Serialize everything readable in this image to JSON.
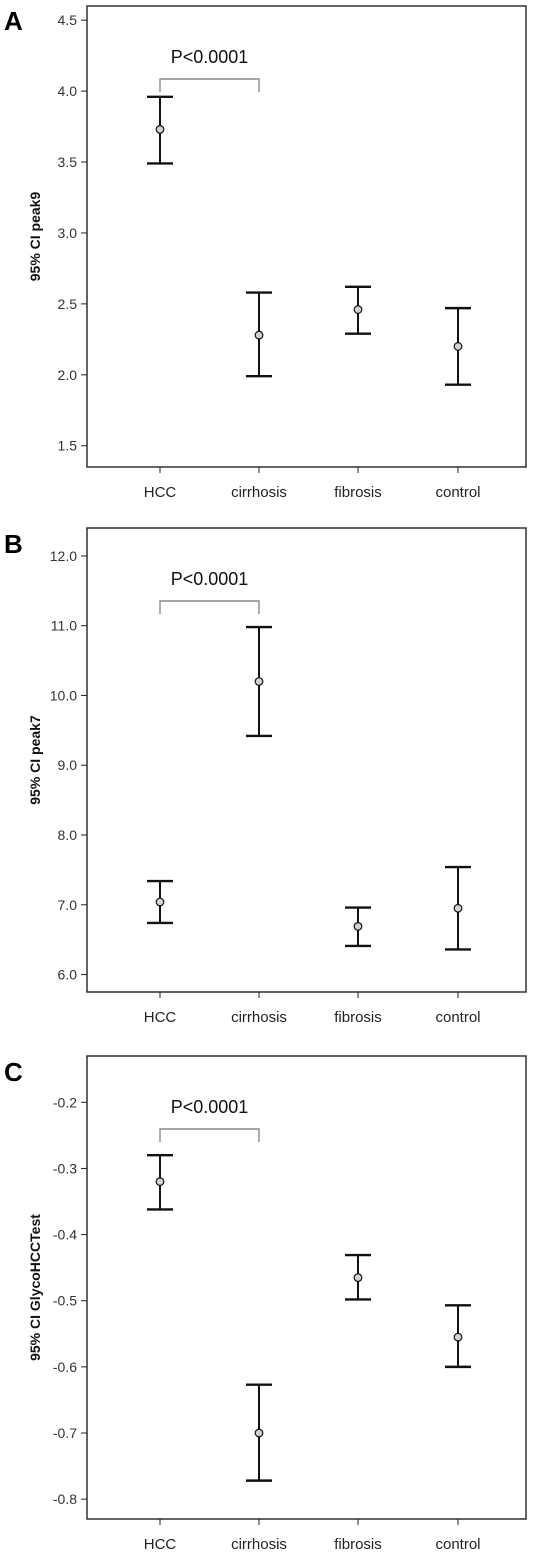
{
  "chart_data": [
    {
      "type": "errorbar",
      "panel": "A",
      "ylabel": "95% CI peak9",
      "categories": [
        "HCC",
        "cirrhosis",
        "fibrosis",
        "control"
      ],
      "ylim": [
        1.35,
        4.6
      ],
      "yticks": [
        "1.5",
        "2.0",
        "2.5",
        "3.0",
        "3.5",
        "4.0",
        "4.5"
      ],
      "series": [
        {
          "mean": [
            3.73,
            2.28,
            2.46,
            2.2
          ],
          "lower": [
            3.49,
            1.99,
            2.29,
            1.93
          ],
          "upper": [
            3.96,
            2.58,
            2.62,
            2.47
          ]
        }
      ],
      "annotation": {
        "text": "P<0.0001",
        "from": "HCC",
        "to": "cirrhosis"
      },
      "grid": false
    },
    {
      "type": "errorbar",
      "panel": "B",
      "ylabel": "95% CI peak7",
      "categories": [
        "HCC",
        "cirrhosis",
        "fibrosis",
        "control"
      ],
      "ylim": [
        5.75,
        12.4
      ],
      "yticks": [
        "6.0",
        "7.0",
        "8.0",
        "9.0",
        "10.0",
        "11.0",
        "12.0"
      ],
      "series": [
        {
          "mean": [
            7.04,
            10.2,
            6.69,
            6.95
          ],
          "lower": [
            6.74,
            9.42,
            6.41,
            6.36
          ],
          "upper": [
            7.34,
            10.98,
            6.96,
            7.54
          ]
        }
      ],
      "annotation": {
        "text": "P<0.0001",
        "from": "HCC",
        "to": "cirrhosis"
      },
      "grid": false
    },
    {
      "type": "errorbar",
      "panel": "C",
      "ylabel": "95% CI GlycoHCCTest",
      "categories": [
        "HCC",
        "cirrhosis",
        "fibrosis",
        "control"
      ],
      "ylim": [
        -0.83,
        -0.13
      ],
      "yticks": [
        "-0.8",
        "-0.7",
        "-0.6",
        "-0.5",
        "-0.4",
        "-0.3",
        "-0.2"
      ],
      "series": [
        {
          "mean": [
            -0.32,
            -0.7,
            -0.465,
            -0.555
          ],
          "lower": [
            -0.362,
            -0.772,
            -0.498,
            -0.6
          ],
          "upper": [
            -0.28,
            -0.627,
            -0.431,
            -0.507
          ]
        }
      ],
      "annotation": {
        "text": "P<0.0001",
        "from": "HCC",
        "to": "cirrhosis"
      },
      "grid": false
    }
  ]
}
